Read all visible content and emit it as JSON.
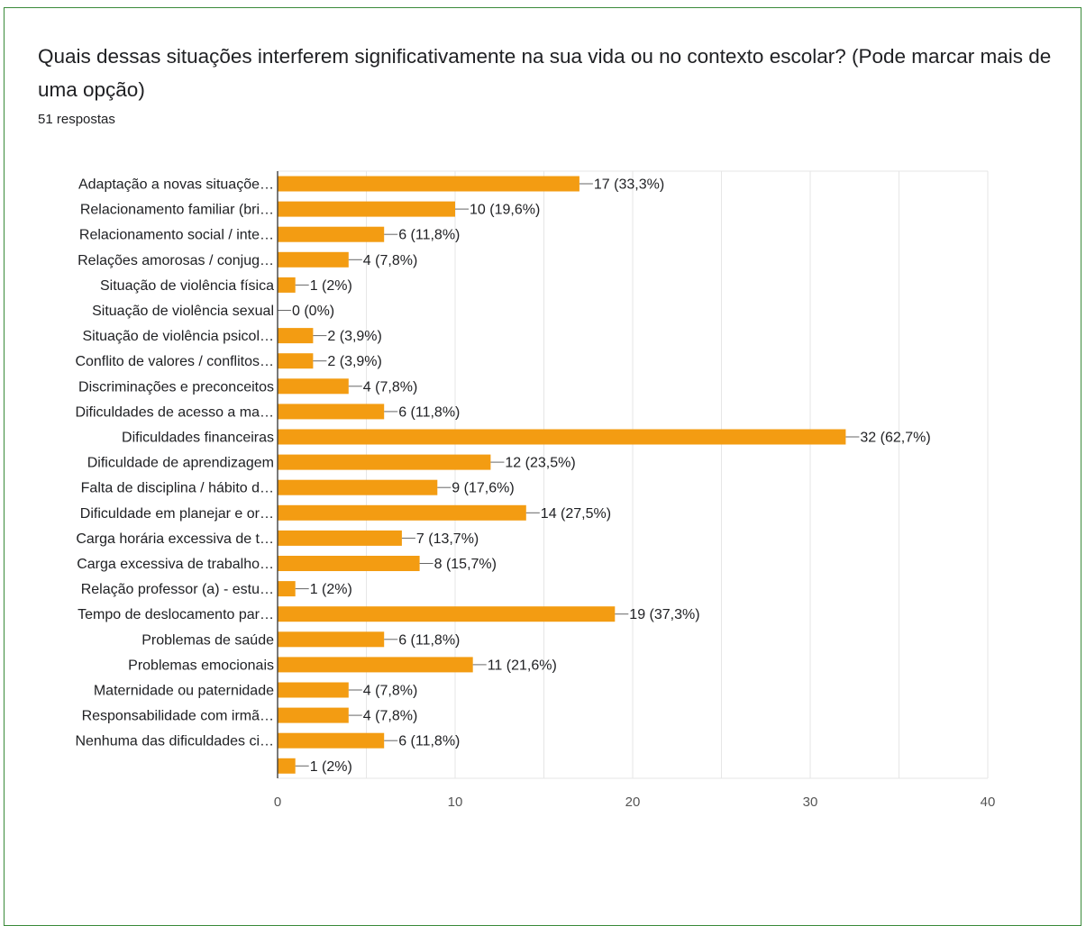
{
  "question": {
    "title": "Quais dessas situações interferem significativamente na sua vida ou no contexto escolar? (Pode marcar mais de uma opção)",
    "responses_label": "51 respostas"
  },
  "colors": {
    "bar": "#f39c12",
    "border": "#3a8a3a",
    "grid": "#e6e6e6",
    "axis": "#333333",
    "text": "#202124",
    "tick_text": "#555555"
  },
  "chart_data": {
    "type": "bar",
    "orientation": "horizontal",
    "categories": [
      "Adaptação a novas situaçõe…",
      "Relacionamento familiar (bri…",
      "Relacionamento social / inte…",
      "Relações amorosas / conjug…",
      "Situação de violência física",
      "Situação de violência sexual",
      "Situação de violência psicol…",
      "Conflito de valores / conflitos…",
      "Discriminações e preconceitos",
      "Dificuldades de acesso a ma…",
      "Dificuldades financeiras",
      "Dificuldade de aprendizagem",
      "Falta de disciplina / hábito d…",
      "Dificuldade em planejar e or…",
      "Carga horária excessiva de t…",
      "Carga excessiva de trabalho…",
      "Relação professor (a) - estu…",
      "Tempo de deslocamento par…",
      "Problemas de saúde",
      "Problemas emocionais",
      "Maternidade ou paternidade",
      "Responsabilidade com irmã…",
      "Nenhuma das dificuldades ci…",
      ""
    ],
    "values": [
      17,
      10,
      6,
      4,
      1,
      0,
      2,
      2,
      4,
      6,
      32,
      12,
      9,
      14,
      7,
      8,
      1,
      19,
      6,
      11,
      4,
      4,
      6,
      1
    ],
    "data_labels": [
      "17 (33,3%)",
      "10 (19,6%)",
      "6 (11,8%)",
      "4 (7,8%)",
      "1 (2%)",
      "0 (0%)",
      "2 (3,9%)",
      "2 (3,9%)",
      "4 (7,8%)",
      "6 (11,8%)",
      "32 (62,7%)",
      "12 (23,5%)",
      "9 (17,6%)",
      "14 (27,5%)",
      "7 (13,7%)",
      "8 (15,7%)",
      "1 (2%)",
      "19 (37,3%)",
      "6 (11,8%)",
      "11 (21,6%)",
      "4 (7,8%)",
      "4 (7,8%)",
      "6 (11,8%)",
      "1 (2%)"
    ],
    "xlim": [
      0,
      40
    ],
    "x_ticks": [
      0,
      10,
      20,
      30,
      40
    ],
    "minor_grid_step": 5,
    "grid": true,
    "legend": false
  }
}
